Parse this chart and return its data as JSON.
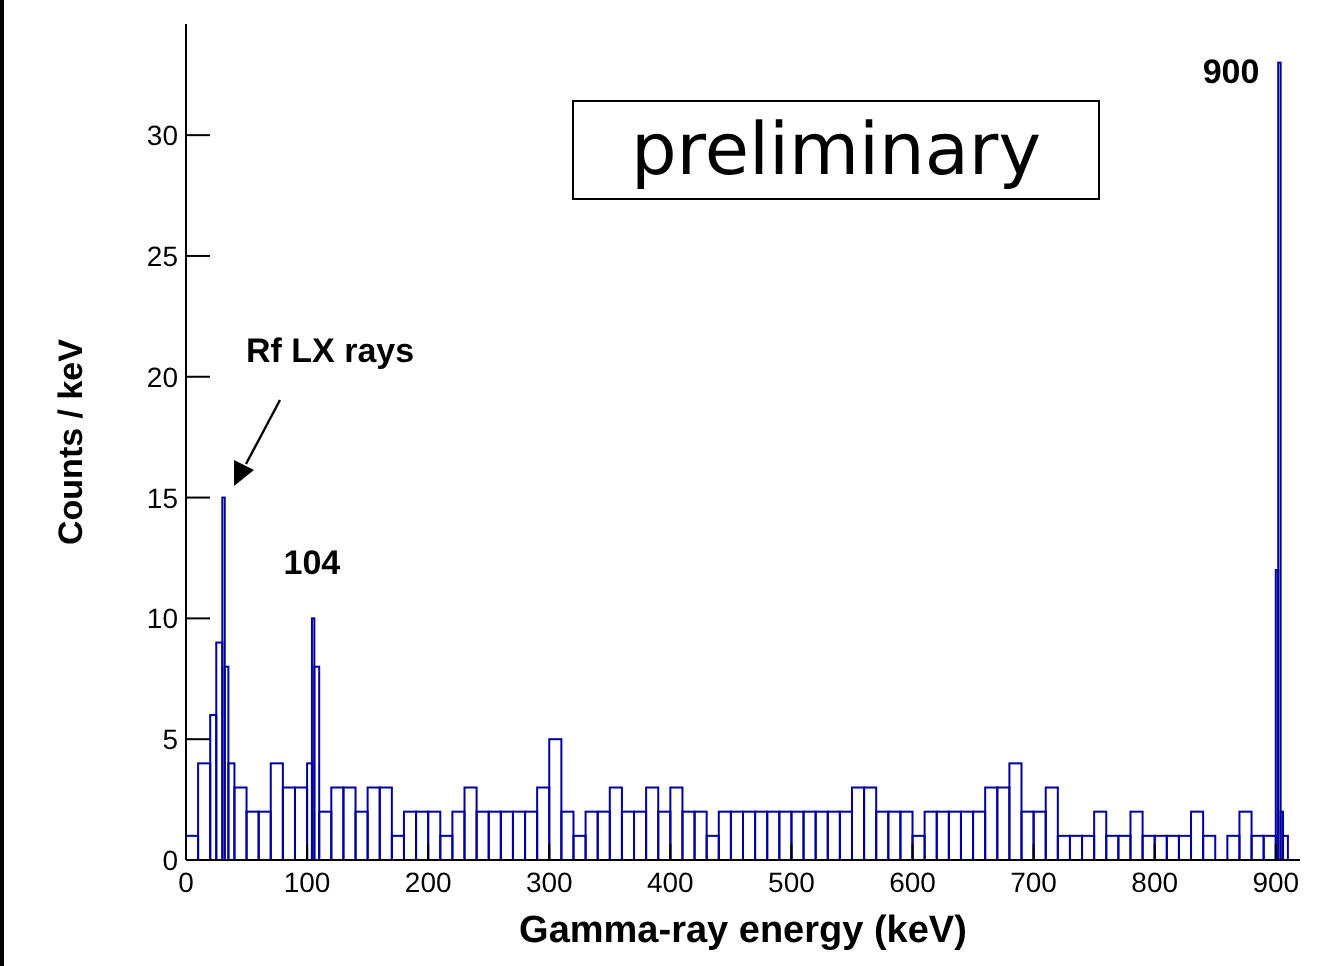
{
  "chart_data": {
    "type": "histogram",
    "xlabel": "Gamma-ray energy (keV)",
    "ylabel": "Counts / keV",
    "bins": [
      0,
      10,
      20,
      25,
      30,
      32,
      35,
      40,
      50,
      60,
      70,
      80,
      90,
      100,
      104,
      106,
      110,
      120,
      130,
      140,
      150,
      160,
      170,
      180,
      190,
      200,
      210,
      220,
      230,
      240,
      250,
      260,
      270,
      280,
      290,
      300,
      310,
      320,
      330,
      340,
      350,
      360,
      370,
      380,
      390,
      400,
      410,
      420,
      430,
      440,
      450,
      460,
      470,
      480,
      490,
      500,
      510,
      520,
      530,
      540,
      550,
      560,
      570,
      580,
      590,
      600,
      610,
      620,
      630,
      640,
      650,
      660,
      670,
      680,
      690,
      700,
      710,
      720,
      730,
      740,
      750,
      760,
      770,
      780,
      790,
      800,
      810,
      820,
      830,
      840,
      850,
      860,
      870,
      880,
      890,
      900,
      902,
      904,
      906,
      910
    ],
    "values": [
      1,
      4,
      6,
      9,
      15,
      8,
      4,
      3,
      2,
      2,
      4,
      3,
      3,
      4,
      10,
      8,
      2,
      3,
      3,
      2,
      3,
      3,
      1,
      2,
      2,
      2,
      1,
      2,
      3,
      2,
      2,
      2,
      2,
      2,
      3,
      5,
      2,
      1,
      2,
      2,
      3,
      2,
      2,
      3,
      2,
      3,
      2,
      2,
      1,
      2,
      2,
      2,
      2,
      2,
      2,
      2,
      2,
      2,
      2,
      2,
      3,
      3,
      2,
      2,
      2,
      1,
      2,
      2,
      2,
      2,
      2,
      3,
      3,
      4,
      2,
      2,
      3,
      1,
      1,
      1,
      2,
      1,
      1,
      2,
      1,
      1,
      1,
      1,
      2,
      1,
      0,
      1,
      2,
      1,
      1,
      12,
      33,
      2,
      1
    ],
    "color": "#0000a0",
    "xlim": [
      0,
      920
    ],
    "xticks": [
      0,
      100,
      200,
      300,
      400,
      500,
      600,
      700,
      800,
      900
    ],
    "ylim": [
      0,
      34.6
    ],
    "yticks": [
      0,
      5,
      10,
      15,
      20,
      25,
      30
    ],
    "annotations": [
      "Rf LX rays",
      {
        "text": "104",
        "x": 104,
        "y": 10
      },
      {
        "text": "900",
        "x": 903,
        "y": 33
      },
      "preliminary"
    ]
  }
}
